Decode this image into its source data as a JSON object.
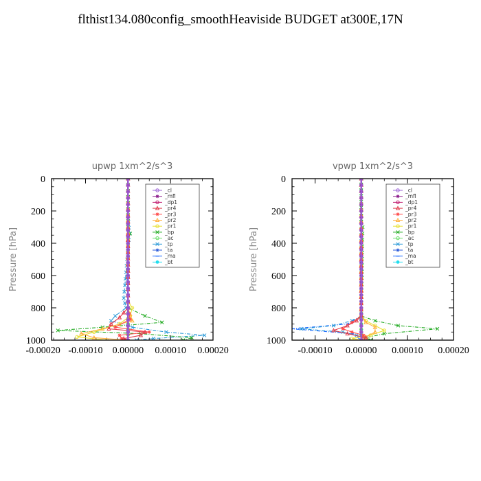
{
  "page_title": "flthist134.080config_smoothHeaviside  BUDGET at300E,17N",
  "legend_names": [
    "_cl",
    "_mfl",
    "_dp1",
    "_pr4",
    "_pr3",
    "_pr2",
    "_pr1",
    "_bp",
    "_ac",
    "_tp",
    "_ta",
    "_ma",
    "_bt"
  ],
  "colors": {
    "_cl": "#9a5fd6",
    "_mfl": "#8a1a8a",
    "_dp1": "#c0186e",
    "_pr4": "#e03a4a",
    "_pr3": "#ff4a4a",
    "_pr2": "#ffb040",
    "_pr1": "#e8e030",
    "_bp": "#22aa22",
    "_ac": "#66dd66",
    "_tp": "#2a9ad8",
    "_ta": "#2a5ad8",
    "_ma": "#1a6aff",
    "_bt": "#22ddee"
  },
  "chart_data": [
    {
      "type": "line",
      "title": "upwp   1xm^2/s^3",
      "ylabel": "Pressure [hPa]",
      "xlabel": "",
      "xlim": [
        -0.00018,
        0.0002
      ],
      "ylim": [
        1000,
        0
      ],
      "x_ticks": [
        "-0.00020",
        "-0.00010",
        "0.00000",
        "0.00010",
        "0.00020"
      ],
      "x_tick_values": [
        -0.0002,
        -0.0001,
        0,
        0.0001,
        0.0002
      ],
      "y_ticks": [
        "0",
        "200",
        "400",
        "600",
        "800",
        "1000"
      ],
      "y_tick_values": [
        0,
        200,
        400,
        600,
        800,
        1000
      ],
      "legend_position": "top-right",
      "series": [
        {
          "name": "_cl",
          "p": [
            0,
            200,
            400,
            600,
            800,
            950,
            1000
          ],
          "x": [
            0,
            0,
            0,
            0,
            0,
            0,
            0
          ]
        },
        {
          "name": "_mfl",
          "p": [
            0,
            200,
            400,
            600,
            800,
            950,
            1000
          ],
          "x": [
            0,
            0,
            0,
            0,
            0,
            0,
            0
          ]
        },
        {
          "name": "_dp1",
          "p": [
            0,
            200,
            400,
            600,
            800,
            950,
            1000
          ],
          "x": [
            0,
            0,
            0,
            0,
            0,
            0,
            0
          ]
        },
        {
          "name": "_pr4",
          "p": [
            0,
            800,
            860,
            900,
            930,
            950,
            970,
            990,
            1000
          ],
          "x": [
            0,
            0,
            -2e-05,
            -4e-05,
            -4.5e-05,
            4e-05,
            3e-05,
            -1e-05,
            0
          ]
        },
        {
          "name": "_pr3",
          "p": [
            0,
            800,
            870,
            920,
            950,
            970,
            990,
            1000
          ],
          "x": [
            0,
            0,
            5e-06,
            -3e-05,
            5e-05,
            -2e-05,
            -1.5e-05,
            0
          ]
        },
        {
          "name": "_pr2",
          "p": [
            0,
            800,
            880,
            930,
            960,
            985,
            1000
          ],
          "x": [
            0,
            0,
            1e-05,
            -6e-05,
            -0.00011,
            -8e-05,
            0
          ]
        },
        {
          "name": "_pr1",
          "p": [
            0,
            760,
            800,
            850,
            900,
            950,
            980,
            1000
          ],
          "x": [
            0,
            0,
            1e-05,
            5e-06,
            -2e-05,
            -8e-05,
            -0.00012,
            -5e-05
          ]
        },
        {
          "name": "_bp",
          "p": [
            0,
            300,
            340,
            380,
            800,
            850,
            890,
            920,
            940,
            960,
            985,
            1000
          ],
          "x": [
            0,
            0,
            5e-06,
            0,
            0,
            4e-05,
            8e-05,
            -6e-05,
            -0.000165,
            3e-05,
            0.00015,
            0.00013
          ]
        },
        {
          "name": "_ac",
          "p": [
            0,
            400,
            800,
            900,
            1000
          ],
          "x": [
            0,
            0,
            0,
            0,
            0
          ]
        },
        {
          "name": "_tp",
          "p": [
            0,
            230,
            340,
            740,
            800,
            850,
            880,
            920,
            950,
            970,
            990,
            1000
          ],
          "x": [
            0,
            0,
            3e-06,
            -1e-05,
            -5e-06,
            -3e-05,
            -4e-05,
            1e-05,
            9e-05,
            0.00018,
            6e-05,
            2e-05
          ]
        },
        {
          "name": "_ta",
          "p": [
            0,
            400,
            800,
            900,
            1000
          ],
          "x": [
            0,
            0,
            0,
            0,
            0
          ]
        },
        {
          "name": "_ma",
          "p": [
            0,
            400,
            800,
            900,
            1000
          ],
          "x": [
            0,
            0,
            0,
            0,
            0
          ]
        },
        {
          "name": "_bt",
          "p": [
            0,
            400,
            800,
            900,
            1000
          ],
          "x": [
            0,
            0,
            0,
            0,
            0
          ]
        }
      ]
    },
    {
      "type": "line",
      "title": "vpwp   1xm^2/s^3",
      "ylabel": "Pressure [hPa]",
      "xlabel": "",
      "xlim": [
        -0.00015,
        0.0002
      ],
      "ylim": [
        1000,
        0
      ],
      "x_ticks": [
        "-0.00010",
        "0.00000",
        "0.00010",
        "0.00020"
      ],
      "x_tick_values": [
        -0.0001,
        0,
        0.0001,
        0.0002
      ],
      "y_ticks": [
        "0",
        "200",
        "400",
        "600",
        "800",
        "1000"
      ],
      "y_tick_values": [
        0,
        200,
        400,
        600,
        800,
        1000
      ],
      "legend_position": "top-right",
      "series": [
        {
          "name": "_cl",
          "p": [
            0,
            200,
            400,
            600,
            800,
            950,
            1000
          ],
          "x": [
            0,
            0,
            0,
            0,
            0,
            0,
            0
          ]
        },
        {
          "name": "_mfl",
          "p": [
            0,
            200,
            400,
            600,
            800,
            950,
            1000
          ],
          "x": [
            0,
            0,
            0,
            0,
            0,
            0,
            0
          ]
        },
        {
          "name": "_dp1",
          "p": [
            0,
            200,
            400,
            600,
            800,
            950,
            1000
          ],
          "x": [
            0,
            0,
            0,
            0,
            0,
            0,
            0
          ]
        },
        {
          "name": "_pr4",
          "p": [
            0,
            850,
            880,
            910,
            940,
            960,
            985,
            1000
          ],
          "x": [
            0,
            0,
            -1e-05,
            -3e-05,
            -6e-05,
            -3e-05,
            1e-05,
            0
          ]
        },
        {
          "name": "_pr3",
          "p": [
            0,
            850,
            890,
            930,
            950,
            970,
            1000
          ],
          "x": [
            0,
            0,
            -2e-05,
            -4e-05,
            -2e-05,
            5e-06,
            0
          ]
        },
        {
          "name": "_pr2",
          "p": [
            0,
            850,
            890,
            920,
            950,
            980,
            1000
          ],
          "x": [
            0,
            0,
            1e-05,
            3e-05,
            3e-05,
            1e-05,
            0
          ]
        },
        {
          "name": "_pr1",
          "p": [
            0,
            850,
            880,
            910,
            940,
            970,
            990,
            1000
          ],
          "x": [
            0,
            0,
            1e-05,
            3e-05,
            5e-05,
            2e-05,
            -2e-05,
            0
          ]
        },
        {
          "name": "_bp",
          "p": [
            0,
            250,
            300,
            850,
            880,
            910,
            930,
            960,
            985,
            1000
          ],
          "x": [
            0,
            0,
            3e-06,
            0,
            3e-05,
            8e-05,
            0.000165,
            5e-05,
            1e-05,
            2e-05
          ]
        },
        {
          "name": "_ac",
          "p": [
            0,
            400,
            800,
            900,
            1000
          ],
          "x": [
            0,
            0,
            0,
            0,
            0
          ]
        },
        {
          "name": "_tp",
          "p": [
            0,
            850,
            880,
            910,
            930,
            950,
            970,
            990,
            1000
          ],
          "x": [
            0,
            0,
            -2e-05,
            -6e-05,
            -0.00013,
            -4e-05,
            -1e-05,
            1e-05,
            0
          ]
        },
        {
          "name": "_ta",
          "p": [
            0,
            400,
            800,
            900,
            1000
          ],
          "x": [
            0,
            0,
            0,
            0,
            0
          ]
        },
        {
          "name": "_ma",
          "p": [
            0,
            850,
            900,
            930,
            960,
            1000
          ],
          "x": [
            0,
            0,
            -3e-05,
            -0.00015,
            -2e-05,
            0
          ]
        },
        {
          "name": "_bt",
          "p": [
            0,
            400,
            800,
            900,
            1000
          ],
          "x": [
            0,
            0,
            0,
            0,
            0
          ]
        }
      ]
    }
  ]
}
